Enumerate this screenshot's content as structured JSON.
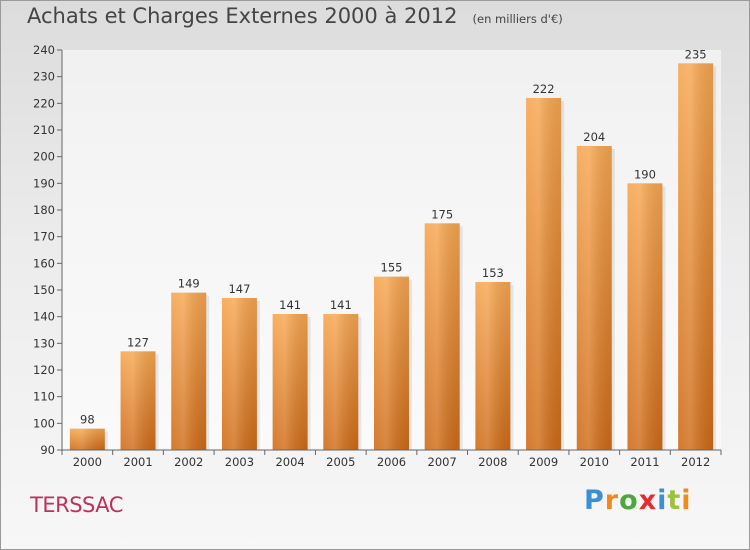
{
  "header": {
    "title": "Achats et Charges Externes 2000 à 2012",
    "subtitle": "(en milliers d'€)"
  },
  "commune": "TERSSAC",
  "logo": {
    "text": "Proxiti",
    "letters": [
      "P",
      "r",
      "o",
      "x",
      "i",
      "t",
      "i"
    ],
    "colors": [
      "#3c8fd6",
      "#ef8a1c",
      "#4aa83c",
      "#e52d2d",
      "#3c8fd6",
      "#9bc23c",
      "#ef8a1c"
    ]
  },
  "chart_data": {
    "type": "bar",
    "categories": [
      "2000",
      "2001",
      "2002",
      "2003",
      "2004",
      "2005",
      "2006",
      "2007",
      "2008",
      "2009",
      "2010",
      "2011",
      "2012"
    ],
    "values": [
      98,
      127,
      149,
      147,
      141,
      141,
      155,
      175,
      153,
      222,
      204,
      190,
      235
    ],
    "ylim": [
      90,
      240
    ],
    "yticks": [
      90,
      100,
      110,
      120,
      130,
      140,
      150,
      160,
      170,
      180,
      190,
      200,
      210,
      220,
      230,
      240
    ],
    "grid": false,
    "bar_color": "#f0913a",
    "value_labels": true
  }
}
